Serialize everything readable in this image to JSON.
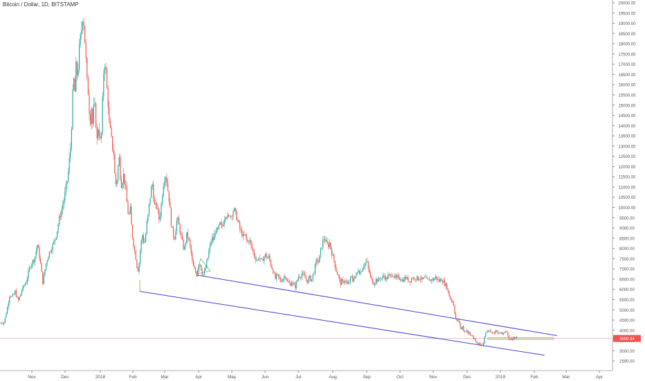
{
  "chart_data": {
    "type": "candlestick",
    "title": "Bitcoin / Dollar, 1D, BITSTAMP",
    "x_ticks": [
      "Nov",
      "Dec",
      "2018",
      "Feb",
      "Mar",
      "Apr",
      "May",
      "Jun",
      "Jul",
      "Aug",
      "Sep",
      "Oct",
      "Nov",
      "Dec",
      "2019",
      "Feb",
      "Mar",
      "Apr"
    ],
    "y_ticks": [
      "2500.00",
      "3000.00",
      "3500.00",
      "4000.00",
      "4500.00",
      "5000.00",
      "5500.00",
      "6000.00",
      "6500.00",
      "7000.00",
      "7500.00",
      "8000.00",
      "8500.00",
      "9000.00",
      "9500.00",
      "10000.00",
      "10500.00",
      "11000.00",
      "11500.00",
      "12000.00",
      "12500.00",
      "13000.00",
      "13500.00",
      "14000.00",
      "14500.00",
      "15000.00",
      "15500.00",
      "16000.00",
      "16500.00",
      "17000.00",
      "17500.00",
      "18000.00",
      "18500.00",
      "19000.00",
      "19500.00",
      "20000.00"
    ],
    "ylim": [
      2200,
      20000
    ],
    "current_price_label": "3600.94",
    "current_price": 3601,
    "colors": {
      "up": "#26a69a",
      "down": "#ef5350",
      "channel": "#3f3fd6",
      "price_line": "#ef9a9a",
      "rect": "#81c784"
    },
    "price_path": [
      [
        0,
        4350
      ],
      [
        6,
        4400
      ],
      [
        10,
        5000
      ],
      [
        14,
        5750
      ],
      [
        18,
        5600
      ],
      [
        22,
        5900
      ],
      [
        26,
        5400
      ],
      [
        32,
        6000
      ],
      [
        38,
        6400
      ],
      [
        44,
        7200
      ],
      [
        50,
        7500
      ],
      [
        54,
        8200
      ],
      [
        58,
        7400
      ],
      [
        62,
        6300
      ],
      [
        66,
        7200
      ],
      [
        70,
        7700
      ],
      [
        74,
        8000
      ],
      [
        78,
        8300
      ],
      [
        82,
        8800
      ],
      [
        86,
        9500
      ],
      [
        90,
        10000
      ],
      [
        94,
        10700
      ],
      [
        98,
        11500
      ],
      [
        102,
        13000
      ],
      [
        104,
        14500
      ],
      [
        106,
        16500
      ],
      [
        108,
        15500
      ],
      [
        110,
        17000
      ],
      [
        112,
        16300
      ],
      [
        114,
        17500
      ],
      [
        116,
        18200
      ],
      [
        118,
        18800
      ],
      [
        120,
        19600
      ],
      [
        122,
        18500
      ],
      [
        124,
        17300
      ],
      [
        126,
        16000
      ],
      [
        128,
        15500
      ],
      [
        130,
        14000
      ],
      [
        132,
        15000
      ],
      [
        134,
        14000
      ],
      [
        136,
        15200
      ],
      [
        138,
        14500
      ],
      [
        140,
        13200
      ],
      [
        142,
        14000
      ],
      [
        144,
        13500
      ],
      [
        146,
        13000
      ],
      [
        148,
        15000
      ],
      [
        150,
        16800
      ],
      [
        152,
        17200
      ],
      [
        154,
        16000
      ],
      [
        156,
        15200
      ],
      [
        158,
        14000
      ],
      [
        160,
        13600
      ],
      [
        162,
        13000
      ],
      [
        164,
        12800
      ],
      [
        166,
        11500
      ],
      [
        168,
        11000
      ],
      [
        170,
        11800
      ],
      [
        172,
        12500
      ],
      [
        174,
        11500
      ],
      [
        176,
        11000
      ],
      [
        178,
        11700
      ],
      [
        180,
        11300
      ],
      [
        182,
        10800
      ],
      [
        184,
        10000
      ],
      [
        186,
        9500
      ],
      [
        188,
        10000
      ],
      [
        190,
        9000
      ],
      [
        192,
        8400
      ],
      [
        194,
        8000
      ],
      [
        196,
        7600
      ],
      [
        198,
        7100
      ],
      [
        200,
        6900
      ],
      [
        202,
        7700
      ],
      [
        204,
        8300
      ],
      [
        206,
        8700
      ],
      [
        208,
        8200
      ],
      [
        210,
        8500
      ],
      [
        212,
        9200
      ],
      [
        214,
        9600
      ],
      [
        216,
        10300
      ],
      [
        218,
        10800
      ],
      [
        220,
        11200
      ],
      [
        222,
        10500
      ],
      [
        224,
        9900
      ],
      [
        226,
        10200
      ],
      [
        228,
        9800
      ],
      [
        230,
        9400
      ],
      [
        232,
        9800
      ],
      [
        234,
        10500
      ],
      [
        236,
        11200
      ],
      [
        238,
        11500
      ],
      [
        240,
        11600
      ],
      [
        242,
        11000
      ],
      [
        244,
        10500
      ],
      [
        246,
        9800
      ],
      [
        248,
        9000
      ],
      [
        250,
        8700
      ],
      [
        252,
        8500
      ],
      [
        254,
        9000
      ],
      [
        256,
        9500
      ],
      [
        258,
        9200
      ],
      [
        260,
        8900
      ],
      [
        262,
        8500
      ],
      [
        264,
        8200
      ],
      [
        266,
        7900
      ],
      [
        268,
        8300
      ],
      [
        270,
        8700
      ],
      [
        272,
        8500
      ],
      [
        274,
        8200
      ],
      [
        276,
        7800
      ],
      [
        278,
        7300
      ],
      [
        280,
        7000
      ],
      [
        282,
        6900
      ],
      [
        284,
        6700
      ],
      [
        286,
        7000
      ],
      [
        288,
        7400
      ],
      [
        290,
        7100
      ],
      [
        292,
        6800
      ],
      [
        294,
        6700
      ],
      [
        296,
        6900
      ],
      [
        298,
        7200
      ],
      [
        300,
        7500
      ],
      [
        302,
        7900
      ],
      [
        304,
        8200
      ],
      [
        306,
        8500
      ],
      [
        308,
        8400
      ],
      [
        310,
        8700
      ],
      [
        312,
        8900
      ],
      [
        314,
        8800
      ],
      [
        316,
        9000
      ],
      [
        318,
        9200
      ],
      [
        320,
        9000
      ],
      [
        322,
        9200
      ],
      [
        324,
        9500
      ],
      [
        326,
        9700
      ],
      [
        328,
        9600
      ],
      [
        330,
        9400
      ],
      [
        332,
        9700
      ],
      [
        334,
        9600
      ],
      [
        336,
        9800
      ],
      [
        338,
        9900
      ],
      [
        340,
        9700
      ],
      [
        342,
        9500
      ],
      [
        344,
        9300
      ],
      [
        346,
        9000
      ],
      [
        348,
        8800
      ],
      [
        350,
        8700
      ],
      [
        352,
        8500
      ],
      [
        354,
        8700
      ],
      [
        356,
        8400
      ],
      [
        358,
        8300
      ],
      [
        360,
        8500
      ],
      [
        362,
        8200
      ],
      [
        364,
        8000
      ],
      [
        366,
        7800
      ],
      [
        368,
        7600
      ],
      [
        370,
        7500
      ],
      [
        372,
        7400
      ],
      [
        374,
        7600
      ],
      [
        376,
        7500
      ],
      [
        378,
        7300
      ],
      [
        380,
        7500
      ],
      [
        382,
        7600
      ],
      [
        384,
        7700
      ],
      [
        386,
        7500
      ],
      [
        388,
        7600
      ],
      [
        390,
        7400
      ],
      [
        392,
        7100
      ],
      [
        394,
        7000
      ],
      [
        396,
        6700
      ],
      [
        398,
        6500
      ],
      [
        400,
        6700
      ],
      [
        402,
        6600
      ],
      [
        404,
        6500
      ],
      [
        406,
        6400
      ],
      [
        408,
        6500
      ],
      [
        410,
        6600
      ],
      [
        412,
        6700
      ],
      [
        414,
        6500
      ],
      [
        416,
        6300
      ],
      [
        418,
        6300
      ],
      [
        420,
        6250
      ],
      [
        422,
        6400
      ],
      [
        424,
        6200
      ],
      [
        426,
        6100
      ],
      [
        428,
        6300
      ],
      [
        430,
        6500
      ],
      [
        432,
        6700
      ],
      [
        434,
        6600
      ],
      [
        436,
        6800
      ],
      [
        438,
        6700
      ],
      [
        440,
        6600
      ],
      [
        442,
        6500
      ],
      [
        444,
        6400
      ],
      [
        446,
        6500
      ],
      [
        448,
        6600
      ],
      [
        450,
        6400
      ],
      [
        452,
        6700
      ],
      [
        454,
        6900
      ],
      [
        456,
        7200
      ],
      [
        458,
        7500
      ],
      [
        460,
        7300
      ],
      [
        462,
        7600
      ],
      [
        464,
        8000
      ],
      [
        466,
        8300
      ],
      [
        468,
        8500
      ],
      [
        470,
        8400
      ],
      [
        472,
        8200
      ],
      [
        474,
        8100
      ],
      [
        476,
        8300
      ],
      [
        478,
        8000
      ],
      [
        480,
        7700
      ],
      [
        482,
        7500
      ],
      [
        484,
        7200
      ],
      [
        486,
        6900
      ],
      [
        488,
        6700
      ],
      [
        490,
        6500
      ],
      [
        492,
        6300
      ],
      [
        494,
        6400
      ],
      [
        496,
        6300
      ],
      [
        498,
        6500
      ],
      [
        500,
        6400
      ],
      [
        502,
        6200
      ],
      [
        504,
        6300
      ],
      [
        506,
        6500
      ],
      [
        508,
        6600
      ],
      [
        510,
        6400
      ],
      [
        512,
        6700
      ],
      [
        514,
        6600
      ],
      [
        516,
        6800
      ],
      [
        518,
        7000
      ],
      [
        520,
        6800
      ],
      [
        522,
        6900
      ],
      [
        524,
        7100
      ],
      [
        526,
        7200
      ],
      [
        528,
        7300
      ],
      [
        530,
        7400
      ],
      [
        532,
        7000
      ],
      [
        534,
        6800
      ],
      [
        536,
        6500
      ],
      [
        538,
        6400
      ],
      [
        540,
        6300
      ],
      [
        542,
        6400
      ],
      [
        544,
        6500
      ],
      [
        546,
        6400
      ],
      [
        548,
        6500
      ],
      [
        550,
        6600
      ],
      [
        552,
        6500
      ],
      [
        554,
        6700
      ],
      [
        556,
        6600
      ],
      [
        558,
        6500
      ],
      [
        560,
        6600
      ],
      [
        562,
        6700
      ],
      [
        564,
        6600
      ],
      [
        566,
        6800
      ],
      [
        568,
        6700
      ],
      [
        570,
        6600
      ],
      [
        572,
        6500
      ],
      [
        574,
        6600
      ],
      [
        576,
        6500
      ],
      [
        578,
        6600
      ],
      [
        580,
        6500
      ],
      [
        582,
        6450
      ],
      [
        584,
        6500
      ],
      [
        586,
        6600
      ],
      [
        588,
        6500
      ],
      [
        590,
        6450
      ],
      [
        592,
        6400
      ],
      [
        594,
        6500
      ],
      [
        596,
        6600
      ],
      [
        598,
        6500
      ],
      [
        600,
        6600
      ],
      [
        602,
        6550
      ],
      [
        604,
        6500
      ],
      [
        606,
        6600
      ],
      [
        608,
        6500
      ],
      [
        610,
        6450
      ],
      [
        612,
        6500
      ],
      [
        614,
        6550
      ],
      [
        616,
        6500
      ],
      [
        618,
        6400
      ],
      [
        620,
        6500
      ],
      [
        622,
        6450
      ],
      [
        624,
        6500
      ],
      [
        626,
        6450
      ],
      [
        628,
        6550
      ],
      [
        630,
        6600
      ],
      [
        632,
        6500
      ],
      [
        634,
        6400
      ],
      [
        636,
        6450
      ],
      [
        638,
        6500
      ],
      [
        640,
        6400
      ],
      [
        642,
        6300
      ],
      [
        644,
        6200
      ],
      [
        646,
        6100
      ],
      [
        648,
        5800
      ],
      [
        650,
        5600
      ],
      [
        652,
        5500
      ],
      [
        654,
        5400
      ],
      [
        656,
        5200
      ],
      [
        658,
        4600
      ],
      [
        660,
        4400
      ],
      [
        662,
        4500
      ],
      [
        664,
        4300
      ],
      [
        666,
        4000
      ],
      [
        668,
        4200
      ],
      [
        670,
        4000
      ],
      [
        672,
        3900
      ],
      [
        674,
        4100
      ],
      [
        676,
        3800
      ],
      [
        678,
        3900
      ],
      [
        680,
        3700
      ],
      [
        682,
        3800
      ],
      [
        684,
        3600
      ],
      [
        686,
        3500
      ],
      [
        688,
        3400
      ],
      [
        690,
        3300
      ],
      [
        692,
        3400
      ],
      [
        694,
        3300
      ],
      [
        696,
        3350
      ],
      [
        698,
        3200
      ],
      [
        700,
        3700
      ],
      [
        702,
        3900
      ],
      [
        704,
        4000
      ],
      [
        706,
        4100
      ],
      [
        708,
        3900
      ],
      [
        710,
        4000
      ],
      [
        712,
        3800
      ],
      [
        714,
        3900
      ],
      [
        716,
        3950
      ],
      [
        718,
        3900
      ],
      [
        720,
        3800
      ],
      [
        722,
        3900
      ],
      [
        724,
        3850
      ],
      [
        726,
        3800
      ],
      [
        728,
        3900
      ],
      [
        730,
        3950
      ],
      [
        732,
        4000
      ],
      [
        734,
        3700
      ],
      [
        736,
        3600
      ],
      [
        738,
        3550
      ],
      [
        740,
        3600
      ],
      [
        742,
        3650
      ],
      [
        744,
        3600
      ],
      [
        746,
        3620
      ],
      [
        748,
        3601
      ]
    ],
    "channel_upper": [
      [
        284,
        6700
      ],
      [
        805,
        3740
      ]
    ],
    "channel_lower": [
      [
        202,
        5900
      ],
      [
        787,
        2780
      ]
    ],
    "triangle": [
      [
        284,
        6750
      ],
      [
        290,
        7500
      ],
      [
        304,
        6900
      ]
    ],
    "rectangle": {
      "x0": 705,
      "x1": 800,
      "y0": 3550,
      "y1": 3650
    }
  }
}
